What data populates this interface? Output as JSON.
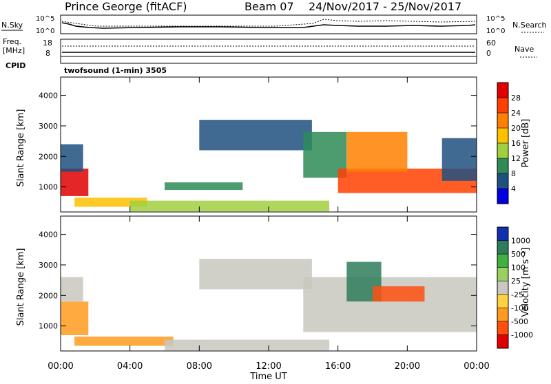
{
  "header": {
    "station": "Prince George (fitACF)",
    "beam": "Beam 07",
    "dates": "24/Nov/2017 - 25/Nov/2017"
  },
  "top_panels": {
    "nsky": {
      "label": "N.Sky",
      "tick_top": "10^5",
      "tick_bottom": "10^0",
      "right_tick_top": "10^5",
      "right_tick_bottom": "10^0",
      "legend": "N.Search"
    },
    "freq": {
      "label_line1": "Freq.",
      "label_line2": "[MHz]",
      "tick_top": "18",
      "tick_bottom": "8",
      "right_tick_top": "60",
      "right_tick_bottom": "0",
      "legend": "Nave"
    },
    "cpid": {
      "label": "CPID",
      "program": "twofsound (1-min) 3505"
    }
  },
  "colorbars": {
    "power": {
      "label": "Power [dB]",
      "ticks": [
        "28",
        "24",
        "20",
        "16",
        "12",
        "8",
        "4"
      ],
      "colors": [
        "#e00000",
        "#ff4000",
        "#ff8000",
        "#ffc000",
        "#a0d040",
        "#2e8b57",
        "#205080",
        "#0000e0"
      ]
    },
    "velocity": {
      "label": "Velocity [m s⁻¹]",
      "ticks": [
        "1000",
        "500",
        "100",
        "25",
        "-25",
        "-100",
        "-500",
        "-1000"
      ],
      "colors": [
        "#1030b0",
        "#2e7d5a",
        "#40b040",
        "#9ad060",
        "#c8c8c0",
        "#ffd040",
        "#ff9a20",
        "#ff5010",
        "#e00000"
      ]
    }
  },
  "axes": {
    "ylabel": "Slant Range [km]",
    "xlabel": "Time UT",
    "x_ticks": [
      "00:00",
      "04:00",
      "08:00",
      "12:00",
      "16:00",
      "20:00",
      "00:00"
    ],
    "y_ticks": [
      "1000",
      "2000",
      "3000",
      "4000"
    ]
  },
  "chart_data": [
    {
      "type": "heatmap",
      "title": "Power [dB]",
      "xlabel": "Time UT",
      "ylabel": "Slant Range [km]",
      "xlim": [
        0,
        24
      ],
      "ylim": [
        180,
        4600
      ],
      "series": [
        {
          "name": "echo-region",
          "x0": 0.0,
          "x1": 1.6,
          "y0": 700,
          "y1": 1600,
          "color": "#e00000"
        },
        {
          "name": "echo-region",
          "x0": 0.0,
          "x1": 1.3,
          "y0": 1500,
          "y1": 2400,
          "color": "#205080"
        },
        {
          "name": "echo-region",
          "x0": 0.8,
          "x1": 5.0,
          "y0": 350,
          "y1": 650,
          "color": "#ffc000"
        },
        {
          "name": "echo-region",
          "x0": 4.0,
          "x1": 15.5,
          "y0": 200,
          "y1": 550,
          "color": "#a0d040"
        },
        {
          "name": "echo-region",
          "x0": 6.0,
          "x1": 10.5,
          "y0": 900,
          "y1": 1150,
          "color": "#2e8b57"
        },
        {
          "name": "echo-region",
          "x0": 8.0,
          "x1": 14.5,
          "y0": 2200,
          "y1": 3200,
          "color": "#205080"
        },
        {
          "name": "echo-region",
          "x0": 14.0,
          "x1": 16.5,
          "y0": 1300,
          "y1": 2800,
          "color": "#2e8b57"
        },
        {
          "name": "echo-region",
          "x0": 16.0,
          "x1": 24.0,
          "y0": 800,
          "y1": 1600,
          "color": "#ff4000"
        },
        {
          "name": "echo-region",
          "x0": 16.5,
          "x1": 20.0,
          "y0": 1500,
          "y1": 2800,
          "color": "#ff8000"
        },
        {
          "name": "echo-region",
          "x0": 22.0,
          "x1": 24.0,
          "y0": 1200,
          "y1": 2600,
          "color": "#205080"
        }
      ]
    },
    {
      "type": "heatmap",
      "title": "Velocity [m s⁻¹]",
      "xlabel": "Time UT",
      "ylabel": "Slant Range [km]",
      "xlim": [
        0,
        24
      ],
      "ylim": [
        180,
        4600
      ],
      "series": [
        {
          "name": "echo-region",
          "x0": 0.0,
          "x1": 1.6,
          "y0": 700,
          "y1": 1800,
          "color": "#ff9a20"
        },
        {
          "name": "echo-region",
          "x0": 0.0,
          "x1": 1.3,
          "y0": 1800,
          "y1": 2600,
          "color": "#c8c8c0"
        },
        {
          "name": "echo-region",
          "x0": 0.8,
          "x1": 6.5,
          "y0": 350,
          "y1": 650,
          "color": "#ff9a20"
        },
        {
          "name": "echo-region",
          "x0": 6.0,
          "x1": 15.5,
          "y0": 200,
          "y1": 550,
          "color": "#c8c8c0"
        },
        {
          "name": "echo-region",
          "x0": 8.0,
          "x1": 14.5,
          "y0": 2200,
          "y1": 3200,
          "color": "#c8c8c0"
        },
        {
          "name": "echo-region",
          "x0": 14.0,
          "x1": 24.0,
          "y0": 800,
          "y1": 2600,
          "color": "#c8c8c0"
        },
        {
          "name": "echo-region",
          "x0": 16.5,
          "x1": 18.5,
          "y0": 1800,
          "y1": 3100,
          "color": "#2e7d5a"
        },
        {
          "name": "echo-region",
          "x0": 18.0,
          "x1": 21.0,
          "y0": 1800,
          "y1": 2300,
          "color": "#ff5010"
        }
      ]
    }
  ]
}
